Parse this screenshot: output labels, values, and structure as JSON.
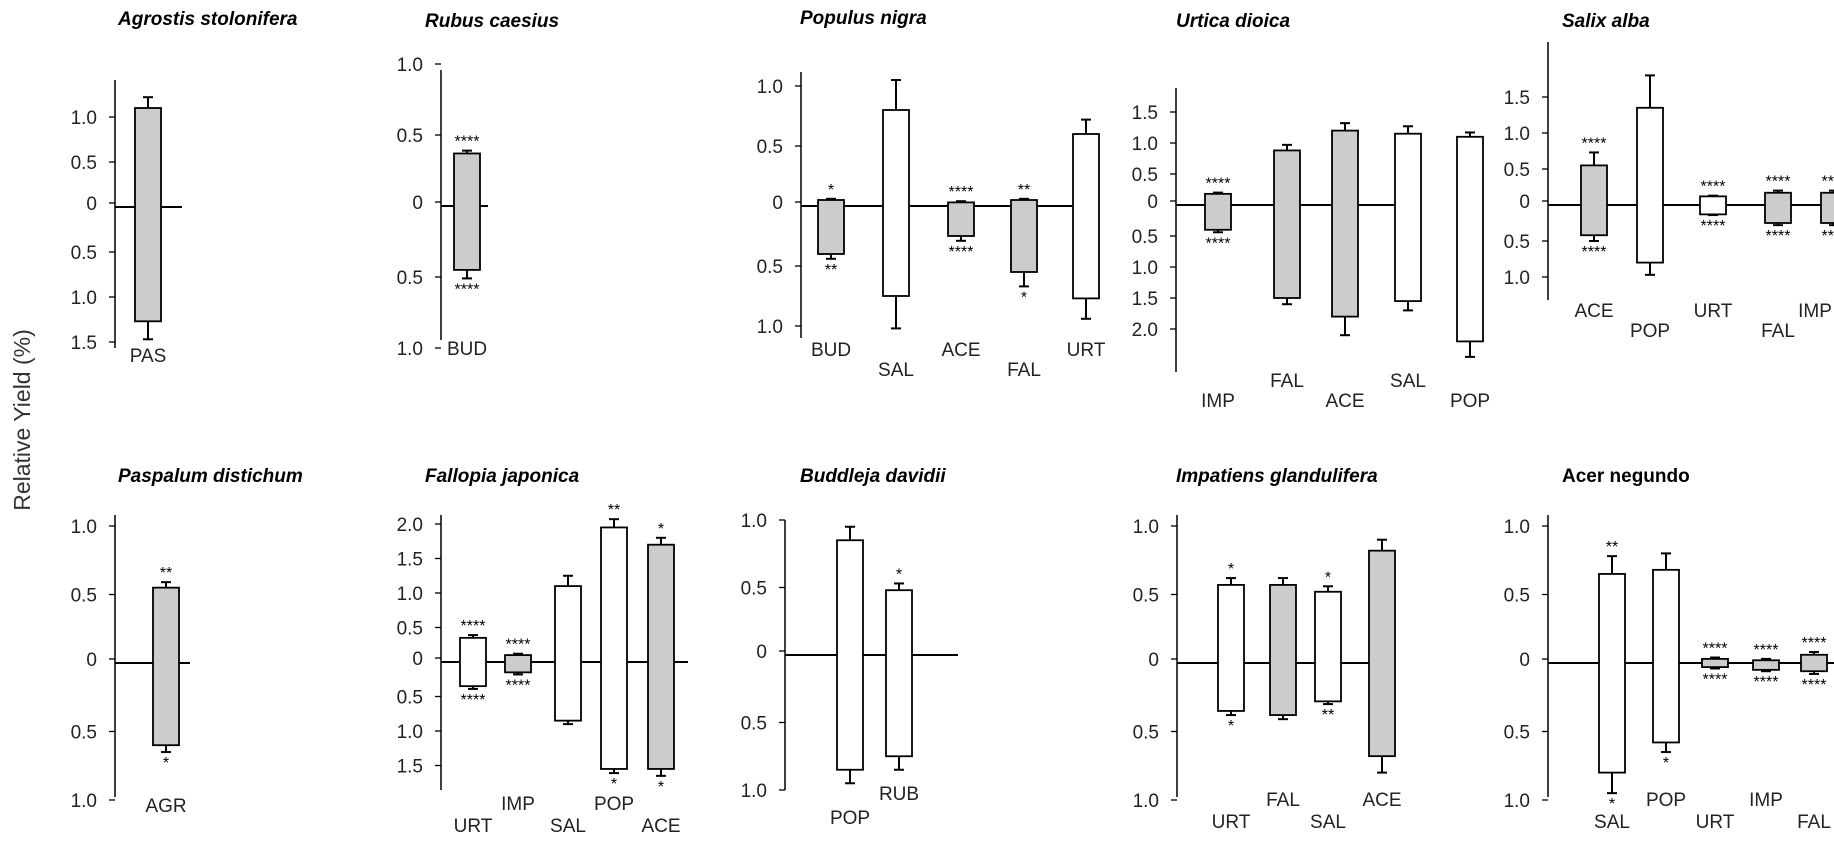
{
  "figure": {
    "ylabel": "Relative Yield (%)",
    "colors": {
      "shaded": "#cccccc",
      "open": "#ffffff",
      "stroke": "#000000"
    }
  },
  "chart_data": [
    {
      "type": "bar",
      "title": "Agrostis stolonifera",
      "y_ticks_up": [
        "0.5",
        "1.0"
      ],
      "y_ticks_down": [
        "0.5",
        "1.0",
        "1.5"
      ],
      "ylim": [
        -1.5,
        1.3
      ],
      "bars": [
        {
          "label": "PAS",
          "fill": "shaded",
          "up": 1.1,
          "up_err": 0.12,
          "up_sig": "",
          "down": 1.27,
          "down_err": 0.2,
          "down_sig": ""
        }
      ]
    },
    {
      "type": "bar",
      "title": "Rubus caesius",
      "y_ticks_up": [
        "0.5",
        "1.0"
      ],
      "y_ticks_down": [
        "0.5",
        "1.0"
      ],
      "ylim": [
        -1.0,
        1.0
      ],
      "bars": [
        {
          "label": "BUD",
          "fill": "shaded",
          "up": 0.37,
          "up_err": 0.02,
          "up_sig": "****",
          "down": 0.45,
          "down_err": 0.06,
          "down_sig": "****"
        }
      ]
    },
    {
      "type": "bar",
      "title": "Populus nigra",
      "y_ticks_up": [
        "0.5",
        "1.0"
      ],
      "y_ticks_down": [
        "0.5",
        "1.0"
      ],
      "ylim": [
        -1.05,
        1.05
      ],
      "bars": [
        {
          "label": "BUD",
          "fill": "shaded",
          "up": 0.05,
          "up_err": 0.01,
          "up_sig": "*",
          "down": 0.4,
          "down_err": 0.04,
          "down_sig": "**"
        },
        {
          "label": "SAL",
          "fill": "open",
          "up": 0.8,
          "up_err": 0.25,
          "up_sig": "",
          "down": 0.75,
          "down_err": 0.27,
          "down_sig": ""
        },
        {
          "label": "ACE",
          "fill": "shaded",
          "up": 0.03,
          "up_err": 0.01,
          "up_sig": "****",
          "down": 0.25,
          "down_err": 0.04,
          "down_sig": "****"
        },
        {
          "label": "FAL",
          "fill": "shaded",
          "up": 0.05,
          "up_err": 0.01,
          "up_sig": "**",
          "down": 0.55,
          "down_err": 0.12,
          "down_sig": "*"
        },
        {
          "label": "URT",
          "fill": "open",
          "up": 0.6,
          "up_err": 0.12,
          "up_sig": "",
          "down": 0.77,
          "down_err": 0.17,
          "down_sig": ""
        }
      ]
    },
    {
      "type": "bar",
      "title": "Urtica dioica",
      "y_ticks_up": [
        "0.5",
        "1.0",
        "1.5"
      ],
      "y_ticks_down": [
        "0.5",
        "1.0",
        "1.5",
        "2.0"
      ],
      "ylim": [
        -2.5,
        1.5
      ],
      "bars": [
        {
          "label": "IMP",
          "fill": "shaded",
          "up": 0.18,
          "up_err": 0.02,
          "up_sig": "****",
          "down": 0.4,
          "down_err": 0.04,
          "down_sig": "****"
        },
        {
          "label": "FAL",
          "fill": "shaded",
          "up": 0.88,
          "up_err": 0.09,
          "up_sig": "",
          "down": 1.5,
          "down_err": 0.1,
          "down_sig": ""
        },
        {
          "label": "ACE",
          "fill": "shaded",
          "up": 1.2,
          "up_err": 0.12,
          "up_sig": "",
          "down": 1.8,
          "down_err": 0.3,
          "down_sig": ""
        },
        {
          "label": "SAL",
          "fill": "open",
          "up": 1.15,
          "up_err": 0.12,
          "up_sig": "",
          "down": 1.55,
          "down_err": 0.15,
          "down_sig": ""
        },
        {
          "label": "POP",
          "fill": "open",
          "up": 1.1,
          "up_err": 0.07,
          "up_sig": "",
          "down": 2.2,
          "down_err": 0.25,
          "down_sig": ""
        }
      ]
    },
    {
      "type": "bar",
      "title": "Salix alba",
      "y_ticks_up": [
        "0.5",
        "1.0",
        "1.5"
      ],
      "y_ticks_down": [
        "0.5",
        "1.0"
      ],
      "ylim": [
        -1.0,
        1.8
      ],
      "bars": [
        {
          "label": "ACE",
          "fill": "shaded",
          "up": 0.55,
          "up_err": 0.18,
          "up_sig": "****",
          "down": 0.42,
          "down_err": 0.08,
          "down_sig": "****"
        },
        {
          "label": "POP",
          "fill": "open",
          "up": 1.35,
          "up_err": 0.45,
          "up_sig": "",
          "down": 0.8,
          "down_err": 0.17,
          "down_sig": ""
        },
        {
          "label": "URT",
          "fill": "open",
          "up": 0.12,
          "up_err": 0.01,
          "up_sig": "****",
          "down": 0.13,
          "down_err": 0.01,
          "down_sig": "****"
        },
        {
          "label": "FAL",
          "fill": "shaded",
          "up": 0.17,
          "up_err": 0.03,
          "up_sig": "****",
          "down": 0.25,
          "down_err": 0.03,
          "down_sig": "****"
        },
        {
          "label": "IMP",
          "fill": "shaded",
          "up": 0.17,
          "up_err": 0.03,
          "up_sig": "****",
          "down": 0.25,
          "down_err": 0.03,
          "down_sig": "****"
        }
      ]
    },
    {
      "type": "bar",
      "title": "Paspalum distichum",
      "y_ticks_up": [
        "0.5",
        "1.0"
      ],
      "y_ticks_down": [
        "0.5",
        "1.0"
      ],
      "ylim": [
        -1.0,
        1.0
      ],
      "bars": [
        {
          "label": "AGR",
          "fill": "shaded",
          "up": 0.55,
          "up_err": 0.04,
          "up_sig": "**",
          "down": 0.6,
          "down_err": 0.05,
          "down_sig": "*"
        }
      ]
    },
    {
      "type": "bar",
      "title": "Fallopia japonica",
      "y_ticks_up": [
        "0.5",
        "1.0",
        "1.5",
        "2.0"
      ],
      "y_ticks_down": [
        "0.5",
        "1.0",
        "1.5"
      ],
      "ylim": [
        -1.75,
        2.0
      ],
      "bars": [
        {
          "label": "URT",
          "fill": "open",
          "up": 0.35,
          "up_err": 0.04,
          "up_sig": "****",
          "down": 0.35,
          "down_err": 0.04,
          "down_sig": "****"
        },
        {
          "label": "IMP",
          "fill": "shaded",
          "up": 0.1,
          "up_err": 0.02,
          "up_sig": "****",
          "down": 0.15,
          "down_err": 0.03,
          "down_sig": "****"
        },
        {
          "label": "SAL",
          "fill": "open",
          "up": 1.1,
          "up_err": 0.15,
          "up_sig": "",
          "down": 0.85,
          "down_err": 0.05,
          "down_sig": ""
        },
        {
          "label": "POP",
          "fill": "open",
          "up": 1.95,
          "up_err": 0.12,
          "up_sig": "**",
          "down": 1.55,
          "down_err": 0.06,
          "down_sig": "*"
        },
        {
          "label": "ACE",
          "fill": "shaded",
          "up": 1.7,
          "up_err": 0.1,
          "up_sig": "*",
          "down": 1.55,
          "down_err": 0.1,
          "down_sig": "*"
        }
      ]
    },
    {
      "type": "bar",
      "title": "Buddleja davidii",
      "y_ticks_up": [
        "0.5",
        "1.0"
      ],
      "y_ticks_down": [
        "0.5",
        "1.0"
      ],
      "ylim": [
        -1.0,
        1.0
      ],
      "bars": [
        {
          "label": "POP",
          "fill": "open",
          "up": 0.85,
          "up_err": 0.1,
          "up_sig": "",
          "down": 0.85,
          "down_err": 0.1,
          "down_sig": ""
        },
        {
          "label": "RUB",
          "fill": "open",
          "up": 0.48,
          "up_err": 0.05,
          "up_sig": "*",
          "down": 0.75,
          "down_err": 0.1,
          "down_sig": ""
        }
      ]
    },
    {
      "type": "bar",
      "title": "Impatiens glandulifera",
      "y_ticks_up": [
        "0.5",
        "1.0"
      ],
      "y_ticks_down": [
        "0.5",
        "1.0"
      ],
      "ylim": [
        -1.0,
        1.0
      ],
      "bars": [
        {
          "label": "URT",
          "fill": "open",
          "up": 0.57,
          "up_err": 0.05,
          "up_sig": "*",
          "down": 0.35,
          "down_err": 0.03,
          "down_sig": "*"
        },
        {
          "label": "FAL",
          "fill": "shaded",
          "up": 0.57,
          "up_err": 0.05,
          "up_sig": "",
          "down": 0.38,
          "down_err": 0.03,
          "down_sig": ""
        },
        {
          "label": "SAL",
          "fill": "open",
          "up": 0.52,
          "up_err": 0.04,
          "up_sig": "*",
          "down": 0.28,
          "down_err": 0.02,
          "down_sig": "**"
        },
        {
          "label": "ACE",
          "fill": "shaded",
          "up": 0.82,
          "up_err": 0.08,
          "up_sig": "",
          "down": 0.68,
          "down_err": 0.12,
          "down_sig": ""
        }
      ]
    },
    {
      "type": "bar",
      "title": "Acer negundo",
      "y_ticks_up": [
        "0.5",
        "1.0"
      ],
      "y_ticks_down": [
        "0.5",
        "1.0"
      ],
      "ylim": [
        -1.0,
        1.0
      ],
      "bars": [
        {
          "label": "SAL",
          "fill": "open",
          "up": 0.65,
          "up_err": 0.13,
          "up_sig": "**",
          "down": 0.8,
          "down_err": 0.15,
          "down_sig": "*"
        },
        {
          "label": "POP",
          "fill": "open",
          "up": 0.68,
          "up_err": 0.12,
          "up_sig": "",
          "down": 0.58,
          "down_err": 0.07,
          "down_sig": "*"
        },
        {
          "label": "URT",
          "fill": "shaded",
          "up": 0.03,
          "up_err": 0.01,
          "up_sig": "****",
          "down": 0.03,
          "down_err": 0.01,
          "down_sig": "****"
        },
        {
          "label": "IMP",
          "fill": "shaded",
          "up": 0.02,
          "up_err": 0.01,
          "up_sig": "****",
          "down": 0.05,
          "down_err": 0.01,
          "down_sig": "****"
        },
        {
          "label": "FAL",
          "fill": "shaded",
          "up": 0.06,
          "up_err": 0.02,
          "up_sig": "****",
          "down": 0.06,
          "down_err": 0.02,
          "down_sig": "****"
        }
      ]
    }
  ]
}
